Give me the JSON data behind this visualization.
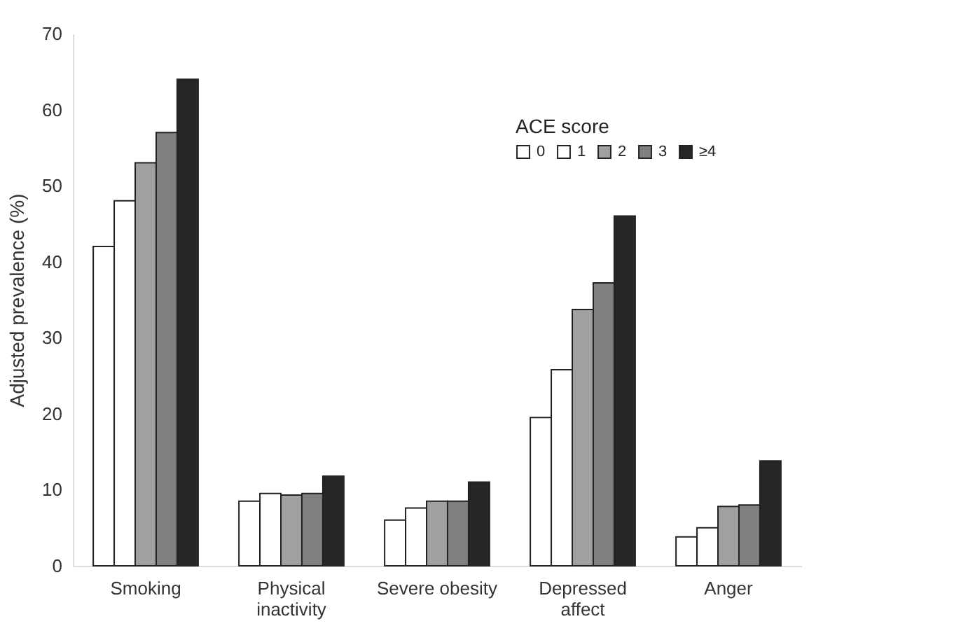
{
  "chart_data": {
    "type": "bar",
    "ylabel": "Adjusted prevalence (%)",
    "legend_title": "ACE score",
    "categories": [
      "Smoking",
      "Physical inactivity",
      "Severe obesity",
      "Depressed affect",
      "Anger"
    ],
    "series": [
      {
        "name": "0",
        "color": "#ffffff",
        "values": [
          42,
          8.5,
          6,
          19.5,
          3.8
        ]
      },
      {
        "name": "1",
        "color": "#ffffff",
        "values": [
          48,
          9.5,
          7.6,
          25.8,
          5
        ]
      },
      {
        "name": "2",
        "color": "#a0a0a0",
        "values": [
          53,
          9.3,
          8.5,
          33.7,
          7.8
        ]
      },
      {
        "name": "3",
        "color": "#808080",
        "values": [
          57,
          9.5,
          8.5,
          37.2,
          8
        ]
      },
      {
        "name": "≥4",
        "color": "#262626",
        "values": [
          64,
          11.8,
          11,
          46,
          13.8
        ]
      }
    ],
    "ylim": [
      0,
      70
    ],
    "yticks": [
      0,
      10,
      20,
      30,
      40,
      50,
      60,
      70
    ],
    "grid": false,
    "legend": "top right"
  }
}
